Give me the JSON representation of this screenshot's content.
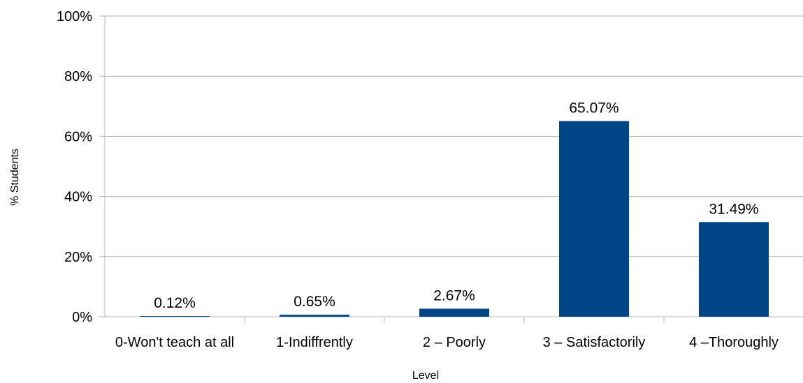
{
  "chart_data": {
    "type": "bar",
    "title": "",
    "xlabel": "Level",
    "ylabel": "% Students",
    "categories": [
      "0-Won't teach at all",
      "1-Indiffrently",
      "2 – Poorly",
      "3 – Satisfactorily",
      "4 –Thoroughly"
    ],
    "values": [
      0.12,
      0.65,
      2.67,
      65.07,
      31.49
    ],
    "data_labels": [
      "0.12%",
      "0.65%",
      "2.67%",
      "65.07%",
      "31.49%"
    ],
    "ylim": [
      0,
      100
    ],
    "yticks": [
      0,
      20,
      40,
      60,
      80,
      100
    ],
    "ytick_labels": [
      "0%",
      "20%",
      "40%",
      "60%",
      "80%",
      "100%"
    ],
    "grid": true,
    "legend": "none",
    "colors": {
      "bar": "#004586",
      "grid": "#b3b3b3",
      "axis": "#b3b3b3"
    }
  }
}
